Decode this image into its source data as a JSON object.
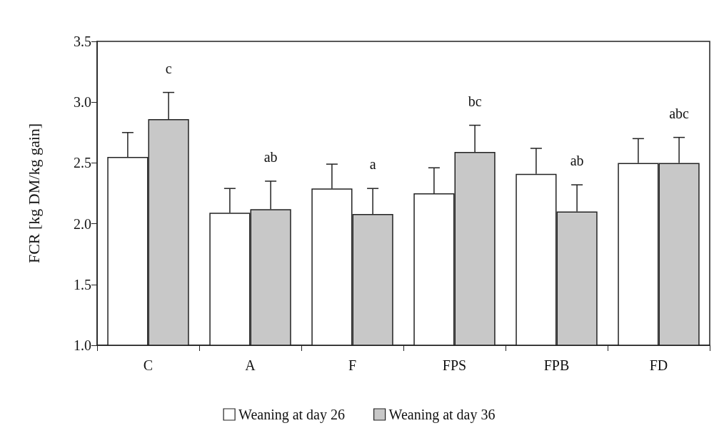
{
  "chart_data": {
    "type": "bar",
    "ylabel": "FCR [kg DM/kg gain]",
    "categories": [
      "C",
      "A",
      "F",
      "FPS",
      "FPB",
      "FD"
    ],
    "series": [
      {
        "name": "Weaning at day 26",
        "color": "#ffffff",
        "values": [
          2.55,
          2.09,
          2.29,
          2.25,
          2.41,
          2.5
        ],
        "errors": [
          0.2,
          0.2,
          0.2,
          0.21,
          0.21,
          0.2
        ]
      },
      {
        "name": "Weaning at day 36",
        "color": "#c8c8c8",
        "values": [
          2.86,
          2.12,
          2.08,
          2.59,
          2.1,
          2.5
        ],
        "errors": [
          0.22,
          0.23,
          0.21,
          0.22,
          0.22,
          0.21
        ]
      }
    ],
    "annotations": [
      "c",
      "ab",
      "a",
      "bc",
      "ab",
      "abc"
    ],
    "ylim": [
      1.0,
      3.5
    ],
    "yticks": [
      {
        "value": 1,
        "label": "1.0"
      },
      1.5,
      {
        "value": 2,
        "label": "2.0"
      },
      2.5,
      {
        "value": 3,
        "label": "3.0"
      },
      3.5
    ],
    "grid": false,
    "legend": "bottom"
  }
}
